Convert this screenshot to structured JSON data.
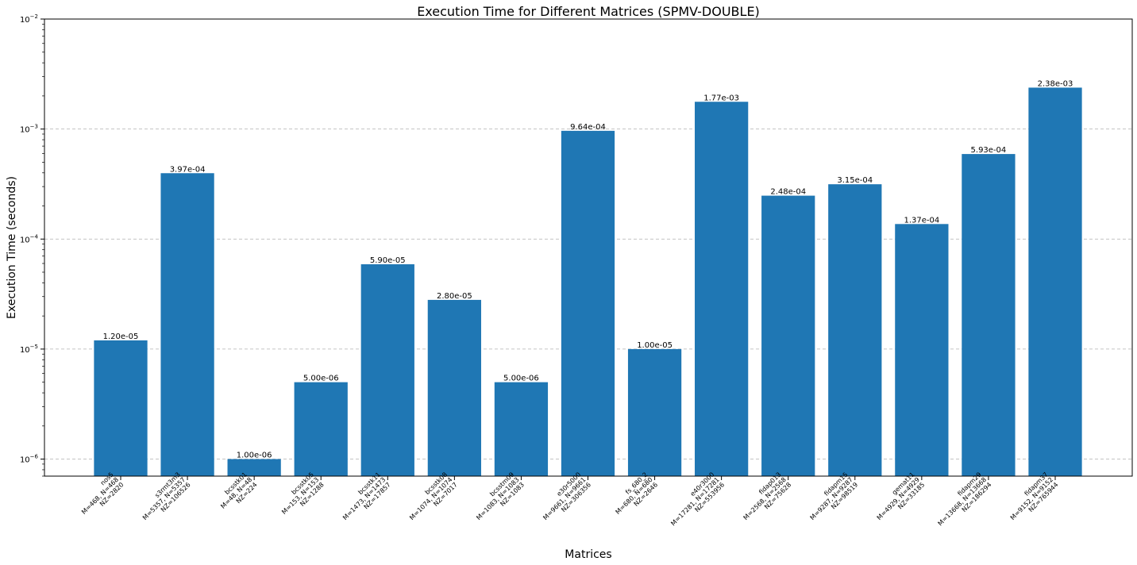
{
  "chart_data": {
    "type": "bar",
    "title": "Execution Time for Different Matrices (SPMV-DOUBLE)",
    "xlabel": "Matrices",
    "ylabel": "Execution Time (seconds)",
    "yscale": "log",
    "ylim": [
      7e-07,
      0.01
    ],
    "grid": "y-major-dashed",
    "y_ticks": [
      {
        "value": 1e-06,
        "base": "10",
        "exp": "−6"
      },
      {
        "value": 1e-05,
        "base": "10",
        "exp": "−5"
      },
      {
        "value": 0.0001,
        "base": "10",
        "exp": "−4"
      },
      {
        "value": 0.001,
        "base": "10",
        "exp": "−3"
      },
      {
        "value": 0.01,
        "base": "10",
        "exp": "−2"
      }
    ],
    "categories": [
      {
        "lines": [
          "nos5",
          "M=468, N=468",
          "NZ=2820"
        ],
        "value": 1.2e-05,
        "label": "1.20e-05"
      },
      {
        "lines": [
          "s3rmt3m3",
          "M=5357, N=5357",
          "NZ=106526"
        ],
        "value": 0.000397,
        "label": "3.97e-04"
      },
      {
        "lines": [
          "bcsstk01",
          "M=48, N=48",
          "NZ=224"
        ],
        "value": 1e-06,
        "label": "1.00e-06"
      },
      {
        "lines": [
          "bcsstk05",
          "M=153, N=153",
          "NZ=1288"
        ],
        "value": 5e-06,
        "label": "5.00e-06"
      },
      {
        "lines": [
          "bcsstk11",
          "M=1473, N=1473",
          "NZ=17857"
        ],
        "value": 5.9e-05,
        "label": "5.90e-05"
      },
      {
        "lines": [
          "bcsstk08",
          "M=1074, N=1074",
          "NZ=7017"
        ],
        "value": 2.8e-05,
        "label": "2.80e-05"
      },
      {
        "lines": [
          "bcsstm09",
          "M=1083, N=1083",
          "NZ=1083"
        ],
        "value": 5e-06,
        "label": "5.00e-06"
      },
      {
        "lines": [
          "e30r5000",
          "M=9661, N=9661",
          "NZ=306356"
        ],
        "value": 0.000964,
        "label": "9.64e-04"
      },
      {
        "lines": [
          "fs_680_2",
          "M=680, N=680",
          "NZ=2646"
        ],
        "value": 1e-05,
        "label": "1.00e-05"
      },
      {
        "lines": [
          "e40r3000",
          "M=17281, N=17281",
          "NZ=553956"
        ],
        "value": 0.00177,
        "label": "1.77e-03"
      },
      {
        "lines": [
          "fidap013",
          "M=2568, N=2568",
          "NZ=75628"
        ],
        "value": 0.000248,
        "label": "2.48e-04"
      },
      {
        "lines": [
          "fidapm15",
          "M=9287, N=9287",
          "NZ=98519"
        ],
        "value": 0.000315,
        "label": "3.15e-04"
      },
      {
        "lines": [
          "gemat11",
          "M=4929, N=4929",
          "NZ=33185"
        ],
        "value": 0.000137,
        "label": "1.37e-04"
      },
      {
        "lines": [
          "fidapm29",
          "M=13668, N=13668",
          "NZ=186294"
        ],
        "value": 0.000593,
        "label": "5.93e-04"
      },
      {
        "lines": [
          "fidapm37",
          "M=9152, N=9152",
          "NZ=765944"
        ],
        "value": 0.00238,
        "label": "2.38e-03"
      }
    ],
    "colors": {
      "bar": "#1f77b4",
      "grid": "#b0b0b0"
    }
  }
}
